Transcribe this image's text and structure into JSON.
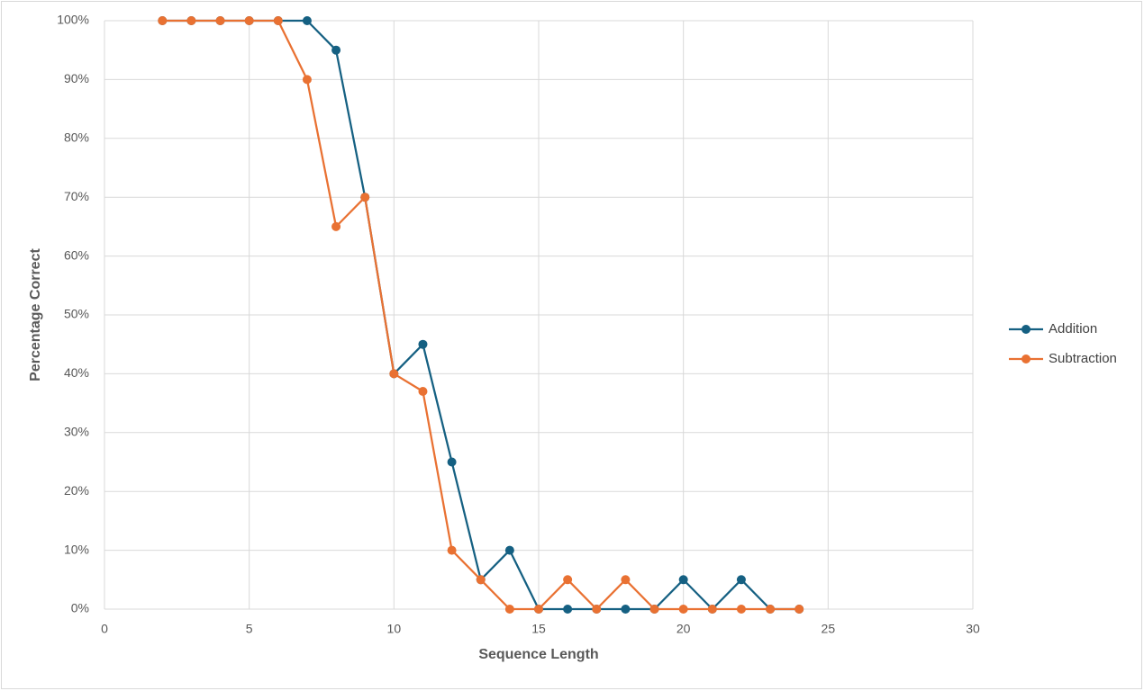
{
  "chart_data": {
    "type": "line",
    "x_label": "Sequence Length",
    "y_label": "Percentage Correct",
    "x": [
      2,
      3,
      4,
      5,
      6,
      7,
      8,
      9,
      10,
      11,
      12,
      13,
      14,
      15,
      16,
      17,
      18,
      19,
      20,
      21,
      22,
      23,
      24
    ],
    "series": [
      {
        "name": "Addition",
        "color": "#156082",
        "values": [
          100,
          100,
          100,
          100,
          100,
          100,
          95,
          70,
          40,
          45,
          25,
          5,
          10,
          0,
          0,
          0,
          0,
          0,
          5,
          0,
          5,
          0,
          0
        ]
      },
      {
        "name": "Subtraction",
        "color": "#e97132",
        "values": [
          100,
          100,
          100,
          100,
          100,
          90,
          65,
          70,
          40,
          37,
          10,
          5,
          0,
          0,
          5,
          0,
          5,
          0,
          0,
          0,
          0,
          0,
          0
        ]
      }
    ],
    "xlim": [
      0,
      30
    ],
    "xticks": [
      0,
      5,
      10,
      15,
      20,
      25,
      30
    ],
    "ylim": [
      0,
      100
    ],
    "yticks": [
      {
        "value": 0,
        "label": "0%"
      },
      {
        "value": 10,
        "label": "10%"
      },
      {
        "value": 20,
        "label": "20%"
      },
      {
        "value": 30,
        "label": "30%"
      },
      {
        "value": 40,
        "label": "40%"
      },
      {
        "value": 50,
        "label": "50%"
      },
      {
        "value": 60,
        "label": "60%"
      },
      {
        "value": 70,
        "label": "70%"
      },
      {
        "value": 80,
        "label": "80%"
      },
      {
        "value": 90,
        "label": "90%"
      },
      {
        "value": 100,
        "label": "100%"
      }
    ],
    "grid": true,
    "legend": "right"
  }
}
